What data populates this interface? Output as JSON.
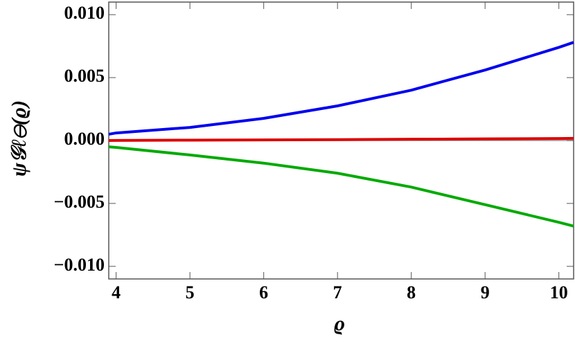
{
  "chart_data": {
    "type": "line",
    "x_label": "ϱ",
    "y_label": "ψ𝒢ℓ⊖(ϱ)",
    "x": [
      3.9,
      4,
      5,
      6,
      7,
      8,
      9,
      10,
      10.2
    ],
    "series": [
      {
        "color": "#0000ee",
        "values": [
          0.0005,
          0.0006,
          0.00104,
          0.00176,
          0.00275,
          0.004,
          0.0056,
          0.0074,
          0.0078
        ]
      },
      {
        "color": "#dd0000",
        "values": [
          0,
          1e-05,
          3e-05,
          5e-05,
          7e-05,
          0.0001,
          0.00013,
          0.00016,
          0.00017
        ]
      },
      {
        "color": "#00aa00",
        "values": [
          -0.0005,
          -0.00055,
          -0.00115,
          -0.0018,
          -0.0026,
          -0.0037,
          -0.0051,
          -0.0065,
          -0.0068
        ]
      }
    ],
    "xlim": [
      3.9,
      10.2
    ],
    "ylim": [
      -0.011,
      0.011
    ],
    "xticks": [
      4,
      5,
      6,
      7,
      8,
      9,
      10
    ],
    "yticks": [
      {
        "value": 0.01,
        "label": "0.010"
      },
      {
        "value": 0.005,
        "label": "0.005"
      },
      {
        "value": 0,
        "label": "0.000"
      },
      {
        "value": -0.005,
        "label": "−0.005"
      },
      {
        "value": -0.01,
        "label": "−0.010"
      }
    ]
  }
}
